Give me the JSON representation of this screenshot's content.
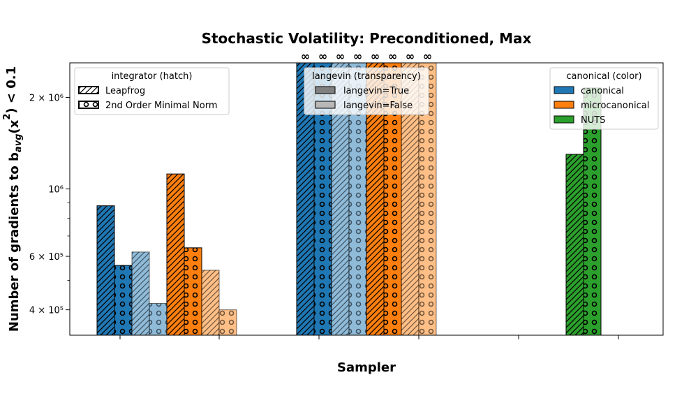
{
  "chart_data": {
    "type": "bar",
    "title": "Stochastic Volatility: Preconditioned, Max",
    "xlabel": "Sampler",
    "ylabel": "Number of gradients to b_avg(x²) < 0.1",
    "yscale": "log",
    "ylim": [
      330000,
      2600000
    ],
    "y_ticks_major": [
      {
        "value": 400000,
        "label": "4 × 10⁵"
      },
      {
        "value": 600000,
        "label": "6 × 10⁵"
      },
      {
        "value": 1000000,
        "label": "10⁶"
      },
      {
        "value": 2000000,
        "label": "2 × 10⁶"
      }
    ],
    "y_ticks_minor": [
      300000,
      500000,
      700000,
      800000,
      900000
    ],
    "infinity_marker": "∞",
    "colors": {
      "canonical": "#1f77b4",
      "microcanonical": "#ff7f0e",
      "NUTS": "#2ca02c"
    },
    "bars": [
      {
        "group": 0,
        "color": "canonical",
        "hatch": "leapfrog",
        "langevin": true,
        "value": 880000
      },
      {
        "group": 0,
        "color": "canonical",
        "hatch": "minimal_norm",
        "langevin": true,
        "value": 560000
      },
      {
        "group": 0,
        "color": "canonical",
        "hatch": "leapfrog",
        "langevin": false,
        "value": 620000
      },
      {
        "group": 0,
        "color": "canonical",
        "hatch": "minimal_norm",
        "langevin": false,
        "value": 420000
      },
      {
        "group": 0,
        "color": "microcanonical",
        "hatch": "leapfrog",
        "langevin": true,
        "value": 1120000
      },
      {
        "group": 0,
        "color": "microcanonical",
        "hatch": "minimal_norm",
        "langevin": true,
        "value": 640000
      },
      {
        "group": 0,
        "color": "microcanonical",
        "hatch": "leapfrog",
        "langevin": false,
        "value": 540000
      },
      {
        "group": 0,
        "color": "microcanonical",
        "hatch": "minimal_norm",
        "langevin": false,
        "value": 400000
      },
      {
        "group": 1,
        "color": "canonical",
        "hatch": "leapfrog",
        "langevin": true,
        "value": "inf"
      },
      {
        "group": 1,
        "color": "canonical",
        "hatch": "minimal_norm",
        "langevin": true,
        "value": "inf"
      },
      {
        "group": 1,
        "color": "canonical",
        "hatch": "leapfrog",
        "langevin": false,
        "value": "inf"
      },
      {
        "group": 1,
        "color": "canonical",
        "hatch": "minimal_norm",
        "langevin": false,
        "value": "inf"
      },
      {
        "group": 1,
        "color": "microcanonical",
        "hatch": "leapfrog",
        "langevin": true,
        "value": "inf"
      },
      {
        "group": 1,
        "color": "microcanonical",
        "hatch": "minimal_norm",
        "langevin": true,
        "value": "inf"
      },
      {
        "group": 1,
        "color": "microcanonical",
        "hatch": "leapfrog",
        "langevin": false,
        "value": "inf"
      },
      {
        "group": 1,
        "color": "microcanonical",
        "hatch": "minimal_norm",
        "langevin": false,
        "value": "inf"
      },
      {
        "group": 2,
        "color": "NUTS",
        "hatch": "leapfrog",
        "langevin": true,
        "value": 1300000
      },
      {
        "group": 2,
        "color": "NUTS",
        "hatch": "minimal_norm",
        "langevin": true,
        "value": 2150000
      }
    ],
    "legends": {
      "integrator": {
        "title": "integrator (hatch)",
        "placement": "top-left",
        "entries": [
          {
            "label": "Leapfrog",
            "hatch": "leapfrog"
          },
          {
            "label": "2nd Order Minimal Norm",
            "hatch": "minimal_norm"
          }
        ]
      },
      "langevin": {
        "title": "langevin (transparency)",
        "placement": "top-center",
        "entries": [
          {
            "label": "langevin=True",
            "color": "#808080"
          },
          {
            "label": "langevin=False",
            "color": "#b8b8b8"
          }
        ]
      },
      "canonical": {
        "title": "canonical (color)",
        "placement": "top-right",
        "entries": [
          {
            "label": "canonical",
            "color": "#1f77b4"
          },
          {
            "label": "microcanonical",
            "color": "#ff7f0e"
          },
          {
            "label": "NUTS",
            "color": "#2ca02c"
          }
        ]
      }
    }
  }
}
